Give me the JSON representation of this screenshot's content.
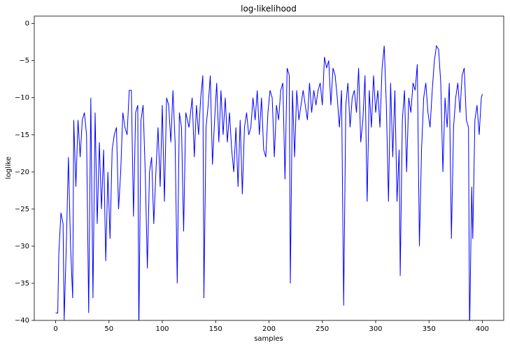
{
  "chart_data": {
    "type": "line",
    "title": "log-likelihood",
    "x_label": "samples",
    "y_label": "loglike",
    "color": "#0000ff",
    "x": [
      0,
      2,
      3,
      5,
      7,
      8,
      10,
      12,
      14,
      16,
      17,
      19,
      21,
      23,
      25,
      27,
      29,
      31,
      33,
      35,
      37,
      39,
      41,
      43,
      45,
      47,
      49,
      51,
      53,
      55,
      57,
      59,
      61,
      63,
      65,
      67,
      69,
      71,
      73,
      75,
      77,
      78,
      80,
      82,
      84,
      86,
      88,
      90,
      92,
      94,
      96,
      98,
      100,
      102,
      104,
      106,
      108,
      110,
      112,
      114,
      116,
      118,
      120,
      122,
      125,
      128,
      130,
      132,
      134,
      136,
      138,
      139,
      141,
      143,
      145,
      147,
      149,
      151,
      153,
      155,
      157,
      159,
      161,
      163,
      165,
      167,
      169,
      171,
      173,
      175,
      177,
      179,
      181,
      183,
      185,
      187,
      189,
      191,
      193,
      195,
      197,
      199,
      201,
      203,
      205,
      207,
      209,
      211,
      213,
      215,
      217,
      219,
      220,
      222,
      224,
      226,
      228,
      230,
      232,
      234,
      236,
      238,
      240,
      242,
      244,
      246,
      248,
      250,
      252,
      254,
      256,
      258,
      260,
      262,
      264,
      266,
      268,
      270,
      272,
      274,
      276,
      278,
      280,
      282,
      284,
      286,
      288,
      290,
      292,
      294,
      296,
      298,
      300,
      302,
      304,
      306,
      308,
      310,
      312,
      314,
      316,
      318,
      320,
      322,
      323,
      325,
      327,
      329,
      331,
      333,
      335,
      337,
      339,
      341,
      343,
      345,
      347,
      349,
      351,
      353,
      355,
      357,
      359,
      361,
      363,
      365,
      367,
      369,
      371,
      373,
      375,
      377,
      379,
      381,
      383,
      385,
      387,
      388,
      390,
      391,
      393,
      395,
      397,
      399,
      400
    ],
    "values": [
      -39,
      -39,
      -31,
      -25.5,
      -27,
      -40,
      -30,
      -18,
      -30,
      -37,
      -13,
      -22,
      -13,
      -18,
      -13,
      -12,
      -15,
      -39,
      -10,
      -37,
      -12,
      -27,
      -16,
      -25,
      -17,
      -32,
      -20,
      -29,
      -17,
      -15,
      -14,
      -25,
      -20,
      -12,
      -14,
      -15,
      -9,
      -9,
      -26,
      -12,
      -11,
      -42,
      -13,
      -11,
      -20,
      -33,
      -20,
      -18,
      -27,
      -20,
      -14,
      -22,
      -11,
      -24,
      -10,
      -11,
      -16,
      -9,
      -16,
      -35,
      -12,
      -14,
      -28,
      -12,
      -14,
      -10,
      -18,
      -11,
      -15,
      -10,
      -7,
      -37,
      -14,
      -11,
      -7,
      -19,
      -13,
      -8,
      -16,
      -9,
      -15,
      -10,
      -16,
      -12,
      -17,
      -20,
      -14,
      -22,
      -13,
      -23,
      -14,
      -12,
      -15,
      -14,
      -10,
      -13,
      -9,
      -15,
      -10,
      -17,
      -18,
      -12,
      -9,
      -10,
      -18,
      -11,
      -13,
      -9,
      -8,
      -21,
      -6,
      -7,
      -35,
      -9,
      -18,
      -9,
      -13,
      -11,
      -9,
      -11,
      -13,
      -8,
      -12,
      -9,
      -11,
      -9,
      -8,
      -11,
      -4.5,
      -6,
      -5,
      -11,
      -6,
      -7,
      -10,
      -14,
      -9,
      -38,
      -11,
      -8,
      -14,
      -10,
      -9,
      -12,
      -6,
      -16,
      -13,
      -7,
      -24,
      -9,
      -14,
      -7,
      -12,
      -9,
      -14,
      -6,
      -3,
      -11,
      -24,
      -8,
      -18,
      -9,
      -24,
      -17,
      -34,
      -13,
      -9,
      -20,
      -10,
      -12,
      -8,
      -9,
      -5.5,
      -30,
      -17,
      -10,
      -8,
      -12,
      -14,
      -9,
      -5,
      -3,
      -3.5,
      -8,
      -20,
      -10,
      -14,
      -8,
      -29,
      -14,
      -10,
      -8,
      -12,
      -7,
      -6,
      -13,
      -14,
      -42,
      -22,
      -29,
      -13,
      -11,
      -15,
      -10,
      -9.5
    ],
    "xlim": [
      -20,
      420
    ],
    "ylim": [
      -40,
      1
    ],
    "xticks": [
      0,
      50,
      100,
      150,
      200,
      250,
      300,
      350,
      400
    ],
    "yticks": [
      {
        "value": -40,
        "label": "−40"
      },
      {
        "value": -35,
        "label": "−35"
      },
      {
        "value": -30,
        "label": "−30"
      },
      {
        "value": -25,
        "label": "−25"
      },
      {
        "value": -20,
        "label": "−20"
      },
      {
        "value": -15,
        "label": "−15"
      },
      {
        "value": -10,
        "label": "−10"
      },
      {
        "value": -5,
        "label": "−5"
      },
      0
    ]
  }
}
